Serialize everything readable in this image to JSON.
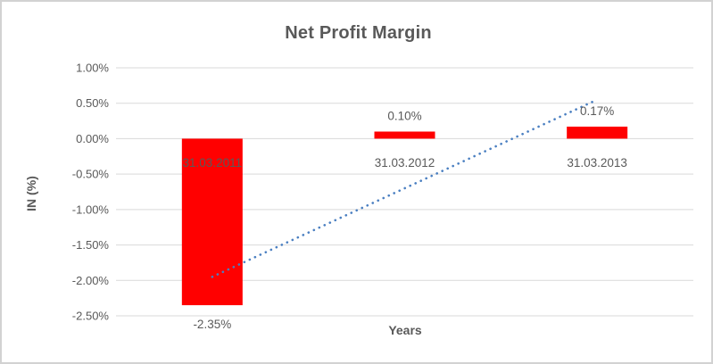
{
  "chart": {
    "title": "Net Profit Margin",
    "x_axis_title": "Years",
    "y_axis_title": "IN (%)"
  },
  "chart_data": {
    "type": "bar",
    "title": "Net Profit Margin",
    "xlabel": "Years",
    "ylabel": "IN (%)",
    "categories": [
      "31.03.2011",
      "31.03.2012",
      "31.03.2013"
    ],
    "values": [
      -2.35,
      0.1,
      0.17
    ],
    "data_labels": [
      "-2.35%",
      "0.10%",
      "0.17%"
    ],
    "y_ticks": [
      {
        "label": "1.00%",
        "value": 1.0
      },
      {
        "label": "0.50%",
        "value": 0.5
      },
      {
        "label": "0.00%",
        "value": 0.0
      },
      {
        "label": "-0.50%",
        "value": -0.5
      },
      {
        "label": "-1.00%",
        "value": -1.0
      },
      {
        "label": "-1.50%",
        "value": -1.5
      },
      {
        "label": "-2.00%",
        "value": -2.0
      },
      {
        "label": "-2.50%",
        "value": -2.5
      }
    ],
    "ylim": [
      -2.5,
      1.0
    ],
    "grid": true,
    "legend_position": "none",
    "bar_color": "#ff0000",
    "text_color": "#595959",
    "gridline_color": "#d9d9d9",
    "trendline": {
      "type": "linear",
      "style": "dotted",
      "color": "#4a7fc1",
      "start_value": -1.95,
      "end_value": 0.55
    }
  }
}
